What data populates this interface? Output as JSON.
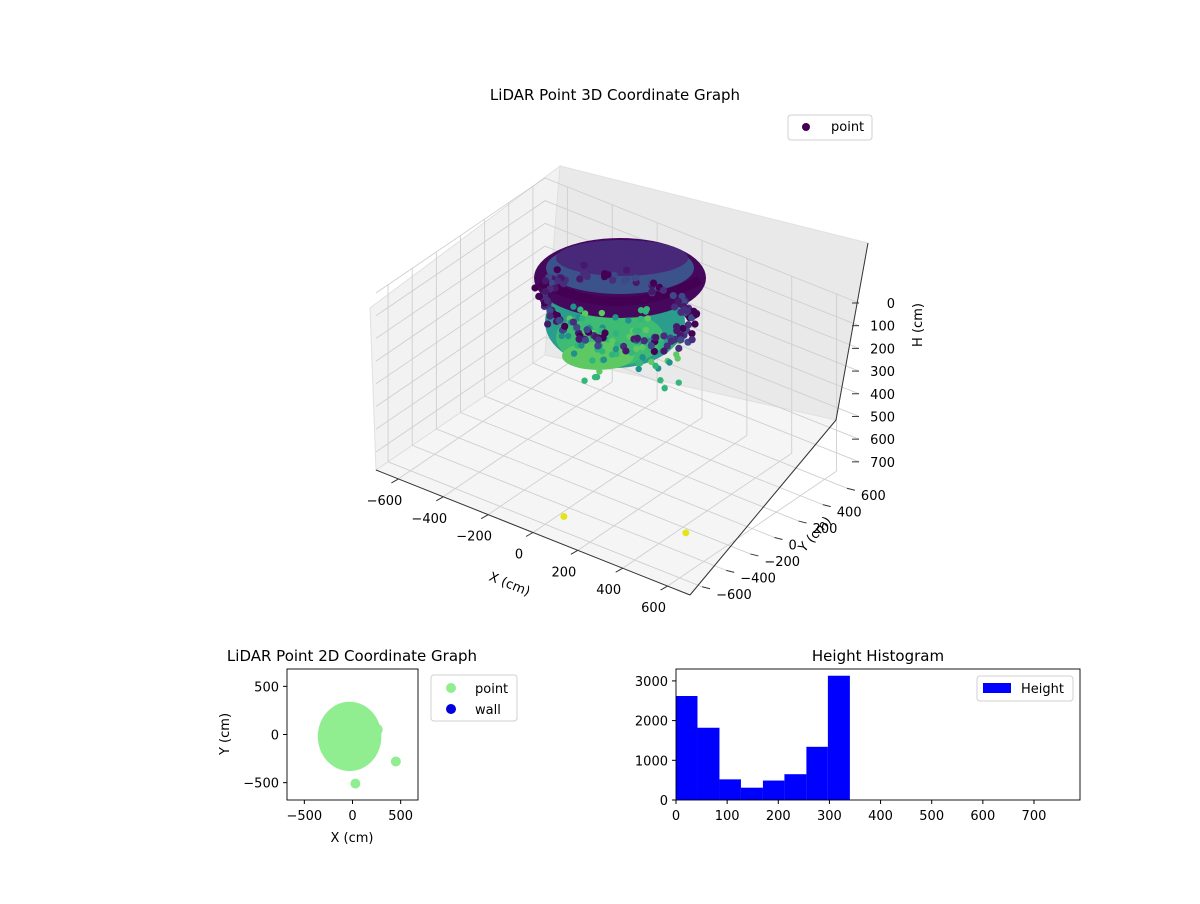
{
  "chart_data": [
    {
      "type": "scatter3d",
      "title": "LiDAR Point 3D Coordinate Graph",
      "xlabel": "X (cm)",
      "ylabel": "Y (cm)",
      "zlabel": "H (cm)",
      "xticks": [
        -600,
        -400,
        -200,
        0,
        200,
        400,
        600
      ],
      "yticks": [
        -600,
        -400,
        -200,
        0,
        200,
        400,
        600
      ],
      "zticks": [
        0,
        100,
        200,
        300,
        400,
        500,
        600,
        700
      ],
      "xlim": [
        -700,
        700
      ],
      "ylim": [
        -700,
        700
      ],
      "zlim": [
        0,
        780
      ],
      "z_inverted": true,
      "colormap": "viridis",
      "legend": [
        {
          "label": "point",
          "color": "#440154"
        }
      ],
      "legend_placement": "upper-right",
      "grid": true,
      "clusters": [
        {
          "name": "ceiling-ring",
          "center_x": 0,
          "center_y": 0,
          "radius": 330,
          "h_min": 20,
          "h_max": 80
        },
        {
          "name": "lower-body",
          "center_x": -30,
          "center_y": 40,
          "radius": 260,
          "h_min": 120,
          "h_max": 340
        }
      ],
      "outliers": [
        {
          "x": 30,
          "y": -500,
          "h": 770
        },
        {
          "x": 450,
          "y": -270,
          "h": 760
        }
      ]
    },
    {
      "type": "scatter",
      "title": "LiDAR Point 2D Coordinate Graph",
      "xlabel": "X (cm)",
      "ylabel": "Y (cm)",
      "xlim": [
        -680,
        680
      ],
      "ylim": [
        -680,
        680
      ],
      "xticks": [
        -500,
        0,
        500
      ],
      "yticks": [
        -500,
        0,
        500
      ],
      "legend": [
        {
          "label": "point",
          "color": "#90ee90"
        },
        {
          "label": "wall",
          "color": "#0000dd"
        }
      ],
      "legend_placement": "outside-right",
      "series": [
        {
          "name": "point",
          "color": "#90ee90",
          "blob": {
            "cx": -30,
            "cy": -20,
            "rx": 330,
            "ry": 360
          },
          "points": [
            [
              30,
              -510
            ],
            [
              450,
              -280
            ]
          ]
        },
        {
          "name": "wall",
          "color": "#0000dd",
          "points": []
        }
      ]
    },
    {
      "type": "bar",
      "title": "Height Histogram",
      "legend": [
        {
          "label": "Height",
          "color": "#0000ff"
        }
      ],
      "legend_placement": "upper-right",
      "xlim": [
        0,
        790
      ],
      "ylim": [
        0,
        3300
      ],
      "xticks": [
        0,
        100,
        200,
        300,
        400,
        500,
        600,
        700
      ],
      "yticks": [
        0,
        1000,
        2000,
        3000
      ],
      "bins": [
        {
          "x0": 0,
          "x1": 42,
          "count": 2620
        },
        {
          "x0": 42,
          "x1": 85,
          "count": 1820
        },
        {
          "x0": 85,
          "x1": 127,
          "count": 520
        },
        {
          "x0": 127,
          "x1": 170,
          "count": 310
        },
        {
          "x0": 170,
          "x1": 212,
          "count": 490
        },
        {
          "x0": 212,
          "x1": 255,
          "count": 650
        },
        {
          "x0": 255,
          "x1": 297,
          "count": 1340
        },
        {
          "x0": 297,
          "x1": 340,
          "count": 3130
        }
      ]
    }
  ]
}
